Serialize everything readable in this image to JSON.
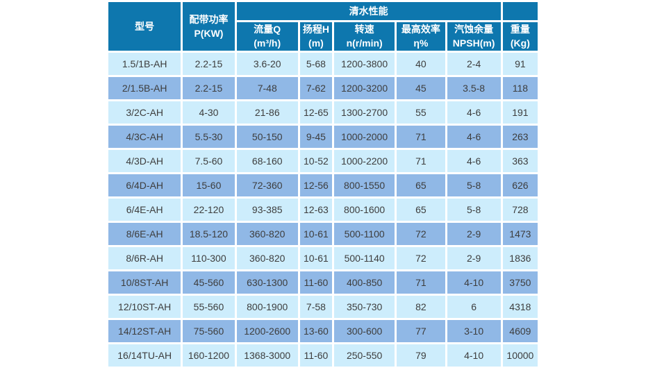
{
  "colors": {
    "header_bg": "#0e77ae",
    "header_text": "#ffffff",
    "row_light_bg": "#cdedfc",
    "row_dark_bg": "#90b8e6",
    "cell_text": "#3d3d3d",
    "gap": "#ffffff"
  },
  "table": {
    "header": {
      "model": "型号",
      "power_line1": "配带功率",
      "power_line2": "P(KW)",
      "perf_group": "清水性能",
      "sub": [
        {
          "line1": "流量Q",
          "line2": "(m³/h)"
        },
        {
          "line1": "扬程H",
          "line2": "(m)"
        },
        {
          "line1": "转速",
          "line2": "n(r/min)"
        },
        {
          "line1": "最高效率",
          "line2": "η%"
        },
        {
          "line1": "汽蚀余量",
          "line2": "NPSH(m)"
        },
        {
          "line1": "重量",
          "line2": "(Kg)"
        }
      ]
    }
  },
  "chart_data": {
    "type": "table",
    "title": "清水性能",
    "columns": [
      "型号",
      "配带功率 P(KW)",
      "流量Q (m³/h)",
      "扬程H (m)",
      "转速 n(r/min)",
      "最高效率 η%",
      "汽蚀余量 NPSH(m)",
      "重量 (Kg)"
    ],
    "rows": [
      [
        "1.5/1B-AH",
        "2.2-15",
        "3.6-20",
        "5-68",
        "1200-3800",
        "40",
        "2-4",
        "91"
      ],
      [
        "2/1.5B-AH",
        "2.2-15",
        "7-48",
        "7-62",
        "1200-3200",
        "45",
        "3.5-8",
        "118"
      ],
      [
        "3/2C-AH",
        "4-30",
        "21-86",
        "12-65",
        "1300-2700",
        "55",
        "4-6",
        "191"
      ],
      [
        "4/3C-AH",
        "5.5-30",
        "50-150",
        "9-45",
        "1000-2000",
        "71",
        "4-6",
        "263"
      ],
      [
        "4/3D-AH",
        "7.5-60",
        "68-160",
        "10-52",
        "1000-2200",
        "71",
        "4-6",
        "363"
      ],
      [
        "6/4D-AH",
        "15-60",
        "72-360",
        "12-56",
        "800-1550",
        "65",
        "5-8",
        "626"
      ],
      [
        "6/4E-AH",
        "22-120",
        "93-385",
        "12-63",
        "800-1600",
        "65",
        "5-8",
        "728"
      ],
      [
        "8/6E-AH",
        "18.5-120",
        "360-820",
        "10-61",
        "500-1100",
        "72",
        "2-9",
        "1473"
      ],
      [
        "8/6R-AH",
        "110-300",
        "360-820",
        "10-61",
        "500-1140",
        "72",
        "2-9",
        "1836"
      ],
      [
        "10/8ST-AH",
        "45-560",
        "630-1300",
        "11-60",
        "400-850",
        "71",
        "4-10",
        "3750"
      ],
      [
        "12/10ST-AH",
        "55-560",
        "800-1900",
        "7-58",
        "350-730",
        "82",
        "6",
        "4318"
      ],
      [
        "14/12ST-AH",
        "75-560",
        "1200-2600",
        "13-60",
        "300-600",
        "77",
        "3-10",
        "4609"
      ],
      [
        "16/14TU-AH",
        "160-1200",
        "1368-3000",
        "11-60",
        "250-550",
        "79",
        "4-10",
        "10000"
      ]
    ]
  }
}
